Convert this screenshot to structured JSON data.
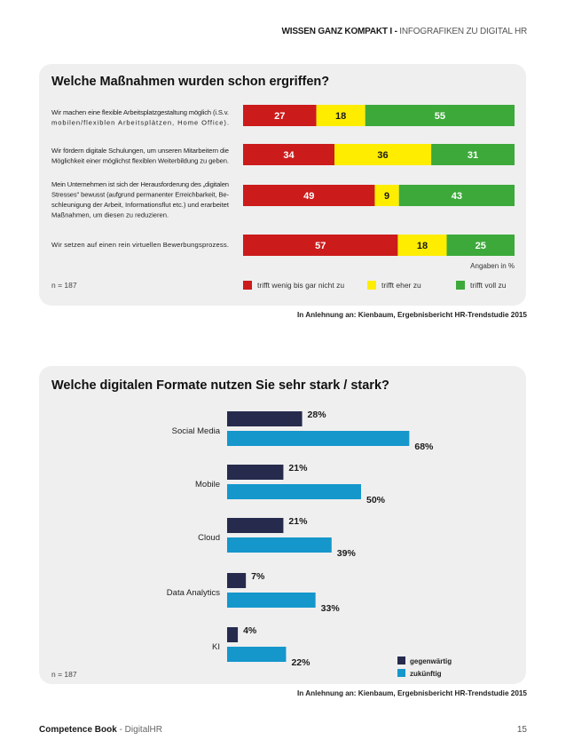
{
  "header": {
    "bold": "WISSEN GANZ KOMPAKT I -",
    "light": " INFOGRAFIKEN ZU DIGITAL HR"
  },
  "chart_data": [
    {
      "type": "bar",
      "orientation": "horizontal-stacked",
      "title": "Welche Maßnahmen wurden schon ergriffen?",
      "categories": [
        [
          "Wir machen eine flexible Arbeitsplatzgestaltung möglich (i.S.v.",
          "mobilen/flexiblen Arbeitsplätzen, Home Office)."
        ],
        [
          "Wir fördern digitale Schulungen, um unseren Mitarbeitern die",
          "Möglichkeit einer möglichst flexiblen Weiterbildung zu geben."
        ],
        [
          "Mein Unternehmen ist sich der Herausforderung des „digitalen",
          "Stresses\" bewusst (aufgrund permanenter Erreichbarkeit, Be-",
          "schleunigung der Arbeit, Informationsflut etc.) und erarbeitet",
          "Maßnahmen, um diesen zu reduzieren."
        ],
        [
          "Wir setzen auf einen rein virtuellen Bewerbungsprozess."
        ]
      ],
      "series": [
        {
          "name": "trifft wenig bis gar nicht zu",
          "color": "#cc1b1b",
          "values": [
            27,
            34,
            49,
            57
          ]
        },
        {
          "name": "trifft eher zu",
          "color": "#ffed00",
          "values": [
            18,
            36,
            9,
            18
          ]
        },
        {
          "name": "trifft voll zu",
          "color": "#3da93a",
          "values": [
            55,
            31,
            43,
            25
          ]
        }
      ],
      "unit_note": "Angaben in %",
      "n": "n = 187",
      "source": "In Anlehnung an: Kienbaum, Ergebnisbericht HR-Trendstudie 2015"
    },
    {
      "type": "bar",
      "orientation": "horizontal-grouped",
      "title": "Welche digitalen Formate nutzen Sie sehr stark / stark?",
      "categories": [
        "Social Media",
        "Mobile",
        "Cloud",
        "Data Analytics",
        "KI"
      ],
      "series": [
        {
          "name": "gegenwärtig",
          "color": "#262b4e",
          "values": [
            28,
            21,
            21,
            7,
            4
          ]
        },
        {
          "name": "zukünftig",
          "color": "#1597cc",
          "values": [
            68,
            50,
            39,
            33,
            22
          ]
        }
      ],
      "value_suffix": "%",
      "n": "n = 187",
      "source": "In Anlehnung an: Kienbaum, Ergebnisbericht HR-Trendstudie 2015"
    }
  ],
  "footer": {
    "bold": "Competence Book",
    "light": " - DigitalHR",
    "page": "15"
  }
}
